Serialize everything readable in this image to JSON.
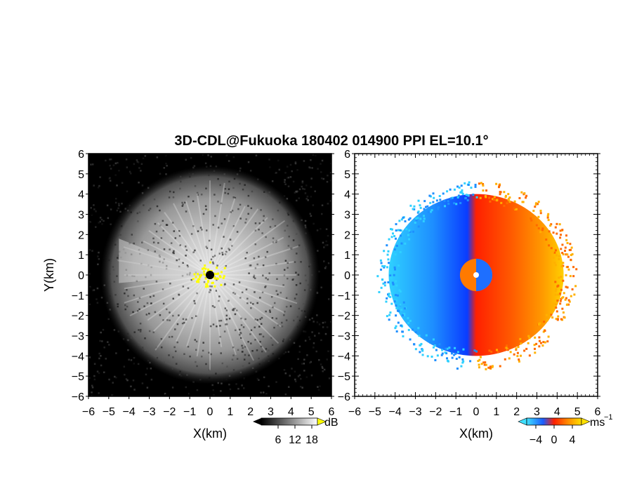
{
  "title": "3D-CDL@Fukuoka 180402 014900 PPI EL=10.1°",
  "chart_data": [
    {
      "type": "heatmap",
      "panel": "reflectivity",
      "xlabel": "X(km)",
      "ylabel": "Y(km)",
      "xlim": [
        -6,
        6
      ],
      "ylim": [
        -6,
        6
      ],
      "xticks": [
        "−6",
        "−5",
        "−4",
        "−3",
        "−2",
        "−1",
        "0",
        "1",
        "2",
        "3",
        "4",
        "5",
        "6"
      ],
      "yticks": [
        "6",
        "5",
        "4",
        "3",
        "2",
        "1",
        "0",
        "−1",
        "−2",
        "−3",
        "−4",
        "−5",
        "−6"
      ],
      "colorbar": {
        "unit": "dB",
        "ticks": [
          "6",
          "12",
          "18"
        ],
        "values": [
          6,
          12,
          18
        ],
        "range": [
          0,
          20
        ],
        "colormap": "grayscale"
      },
      "background_color": "#000000",
      "echo_radius_km": 4.0,
      "highlight_color": "#ffff00",
      "center_marker_color": "#000000"
    },
    {
      "type": "heatmap",
      "panel": "doppler_velocity",
      "xlabel": "X(km)",
      "xlim": [
        -6,
        6
      ],
      "ylim": [
        -6,
        6
      ],
      "xticks": [
        "−6",
        "−5",
        "−4",
        "−3",
        "−2",
        "−1",
        "0",
        "1",
        "2",
        "3",
        "4",
        "5",
        "6"
      ],
      "yticks": [
        "6",
        "5",
        "4",
        "3",
        "2",
        "1",
        "0",
        "−1",
        "−2",
        "−3",
        "−4",
        "−5",
        "−6"
      ],
      "colorbar": {
        "unit": "ms",
        "unit_exp": "−1",
        "ticks": [
          "−4",
          "0",
          "4"
        ],
        "values": [
          -4,
          0,
          4
        ],
        "range": [
          -6,
          6
        ],
        "colormap": "cyan-blue-red-yellow"
      },
      "background_color": "#ffffff",
      "echo_radius_km": 4.0,
      "negative_color": "#1e6fff",
      "positive_color": "#ff4a00"
    }
  ]
}
